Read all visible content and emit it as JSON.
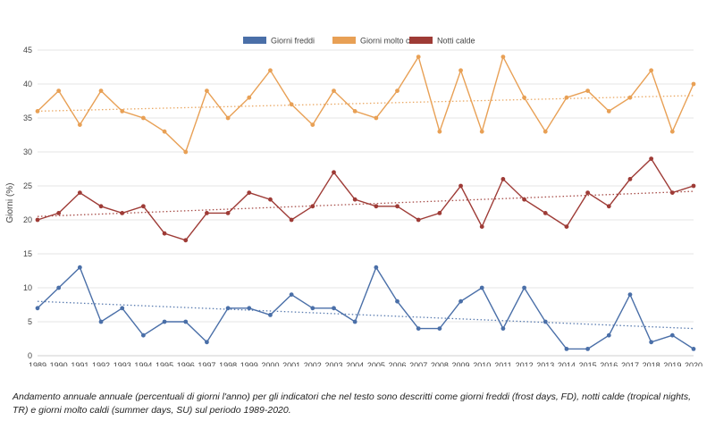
{
  "chart_data": {
    "type": "line",
    "title": "",
    "xlabel": "",
    "ylabel": "Giorni (%)",
    "ylim": [
      0,
      45
    ],
    "yticks": [
      0,
      5,
      10,
      15,
      20,
      25,
      30,
      35,
      40,
      45
    ],
    "grid": "horizontal",
    "legend_position": "top-center",
    "x": [
      "1989",
      "1990",
      "1991",
      "1992",
      "1993",
      "1994",
      "1995",
      "1996",
      "1997",
      "1998",
      "1999",
      "2000",
      "2001",
      "2002",
      "2003",
      "2004",
      "2005",
      "2006",
      "2007",
      "2008",
      "2009",
      "2010",
      "2011",
      "2012",
      "2013",
      "2014",
      "2015",
      "2016",
      "2017",
      "2018",
      "2019",
      "2020"
    ],
    "series": [
      {
        "name": "Giorni freddi",
        "color": "#4a6fa8",
        "values": [
          7,
          10,
          13,
          5,
          7,
          3,
          5,
          5,
          2,
          7,
          7,
          6,
          9,
          7,
          7,
          5,
          13,
          8,
          4,
          4,
          8,
          10,
          4,
          10,
          5,
          1,
          1,
          3,
          9,
          2,
          3,
          1
        ],
        "trend": [
          8,
          4
        ]
      },
      {
        "name": "Giorni molto caldi",
        "color": "#e8a055",
        "values": [
          36,
          39,
          34,
          39,
          36,
          35,
          33,
          30,
          39,
          35,
          38,
          42,
          37,
          34,
          39,
          36,
          35,
          39,
          44,
          33,
          42,
          33,
          44,
          38,
          33,
          38,
          39,
          36,
          38,
          42,
          33,
          40
        ],
        "trend": [
          36,
          38.3
        ]
      },
      {
        "name": "Notti calde",
        "color": "#9e3b36",
        "values": [
          20,
          21,
          24,
          22,
          21,
          22,
          18,
          17,
          21,
          21,
          24,
          23,
          20,
          22,
          27,
          23,
          22,
          22,
          20,
          21,
          25,
          19,
          26,
          23,
          21,
          19,
          24,
          22,
          26,
          29,
          24,
          25
        ],
        "trend": [
          20.5,
          24.2
        ]
      }
    ]
  },
  "caption": "Andamento annuale annuale (percentuali di giorni l'anno) per gli indicatori che nel testo sono descritti come giorni freddi (frost days, FD), notti calde (tropical nights, TR) e giorni molto caldi (summer days, SU) sul periodo 1989-2020."
}
